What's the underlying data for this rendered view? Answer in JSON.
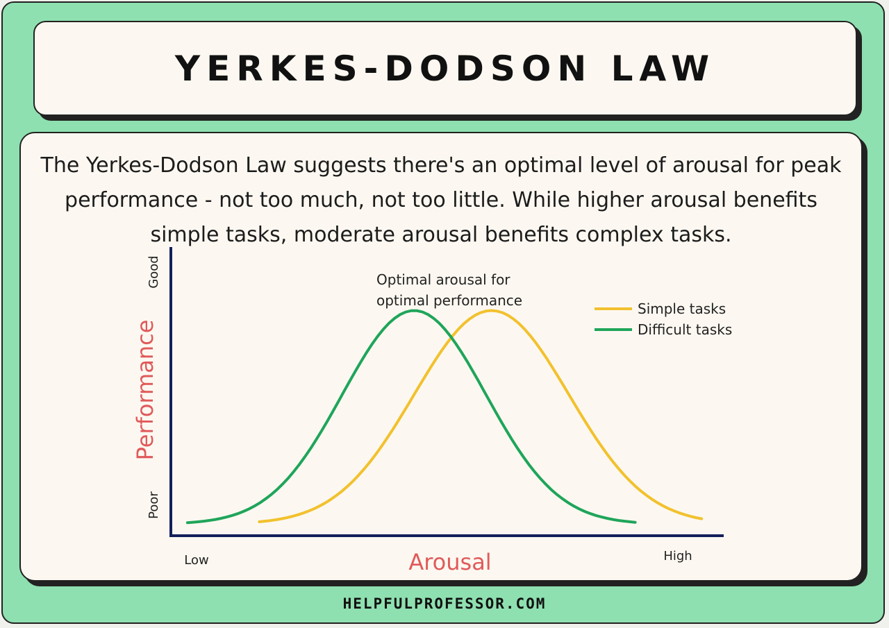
{
  "title": "YERKES-DODSON LAW",
  "description": "The Yerkes-Dodson Law suggests there's an optimal level of arousal for peak performance - not too much, not too little. While higher arousal benefits simple tasks, moderate arousal benefits complex tasks.",
  "footer": "HELPFULPROFESSOR.COM",
  "colors": {
    "background": "#8fe0b0",
    "card": "#fcf8f1",
    "axis": "#14205a",
    "axis_title": "#e05a5a",
    "simple": "#f2c12e",
    "difficult": "#1fa55a"
  },
  "chart_data": {
    "type": "line",
    "xlabel": "Arousal",
    "ylabel": "Performance",
    "x_ticks": [
      "Low",
      "High"
    ],
    "y_ticks": [
      "Poor",
      "Good"
    ],
    "annotation": "Optimal arousal for optimal performance",
    "annotation_lines": [
      "Optimal arousal for",
      "optimal performance"
    ],
    "legend_position": "top-right",
    "grid": false,
    "xlim": [
      0,
      1
    ],
    "ylim": [
      0,
      1
    ],
    "series": [
      {
        "name": "Simple tasks",
        "color": "#f2c12e",
        "peak_x": 0.58,
        "peak_y": 0.78,
        "width": 0.14,
        "start_x": 0.16,
        "end_x": 0.96,
        "base_y": 0.04
      },
      {
        "name": "Difficult tasks",
        "color": "#1fa55a",
        "peak_x": 0.44,
        "peak_y": 0.78,
        "width": 0.13,
        "start_x": 0.03,
        "end_x": 0.84,
        "base_y": 0.04
      }
    ]
  }
}
